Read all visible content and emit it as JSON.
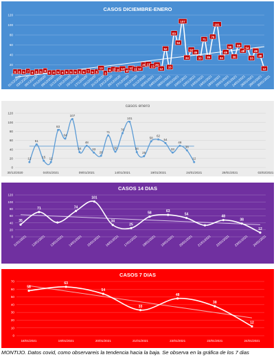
{
  "caption": "MONTIJO. Datos covid, como observareis la tendencia hacia la baja. Se observa en la gráfica de los 7 dias",
  "chart_data": [
    {
      "type": "line",
      "title": "CASOS DICIEMBRE-ENERO",
      "style": {
        "background": "#4a8fd4",
        "line": "#ffffff",
        "label_bg": "#c00000",
        "title_color": "#ffffff",
        "trend": "linear",
        "trend_color": "#ffffff"
      },
      "ylim": [
        0,
        120
      ],
      "y_ticks": [
        0,
        20,
        40,
        60,
        80,
        100,
        120
      ],
      "x_tick_labels": [
        "01/12/2020",
        "03/12/2020",
        "05/12/2020",
        "07/12/2020",
        "09/12/2020",
        "11/12/2020",
        "13/12/2020",
        "15/12/2020",
        "17/12/2020",
        "19/12/2020",
        "21/12/2020",
        "23/12/2020",
        "25/12/2020",
        "27/12/2020",
        "29/12/2020",
        "31/12/2020",
        "02/01/2021",
        "04/01/2021",
        "06/01/2021",
        "08/01/2021",
        "10/01/2021",
        "12/01/2021",
        "14/01/2021",
        "16/01/2021",
        "18/01/2021",
        "20/01/2021",
        "22/01/2021",
        "24/01/2021",
        "26/01/2021",
        "28/01/2021",
        "30/01/2021"
      ],
      "values": [
        6,
        6,
        5,
        7,
        4,
        6,
        6,
        8,
        4,
        4,
        5,
        4,
        5,
        5,
        5,
        6,
        5,
        7,
        5,
        6,
        13,
        3,
        9,
        11,
        10,
        12,
        8,
        13,
        11,
        12,
        20,
        21,
        17,
        20,
        12,
        52,
        15,
        83,
        64,
        107,
        34,
        50,
        45,
        33,
        71,
        35,
        76,
        101,
        34,
        45,
        56,
        36,
        59,
        48,
        54,
        33,
        48,
        38,
        12
      ],
      "grid": true
    },
    {
      "type": "line",
      "title": "casos enero",
      "style": {
        "background": "#ececec",
        "line": "#5b9bd5",
        "title_color": "#595959",
        "trend": "moving-average",
        "trend_color": "#5b9bd5"
      },
      "ylim": [
        0,
        120
      ],
      "y_ticks": [
        0,
        20,
        40,
        60,
        80,
        100,
        120
      ],
      "x_tick_labels": [
        "30/12/2020",
        "04/01/2021",
        "09/01/2021",
        "14/01/2021",
        "19/01/2021",
        "24/01/2021",
        "29/01/2021",
        "03/02/2021"
      ],
      "x_dates": [
        "2021-01-01",
        "2021-01-02",
        "2021-01-03",
        "2021-01-04",
        "2021-01-05",
        "2021-01-06",
        "2021-01-07",
        "2021-01-08",
        "2021-01-09",
        "2021-01-10",
        "2021-01-11",
        "2021-01-12",
        "2021-01-13",
        "2021-01-14",
        "2021-01-15",
        "2021-01-16",
        "2021-01-17",
        "2021-01-18",
        "2021-01-19",
        "2021-01-20",
        "2021-01-21",
        "2021-01-22",
        "2021-01-23",
        "2021-01-24"
      ],
      "values": [
        12,
        51,
        15,
        12,
        83,
        64,
        107,
        34,
        48,
        33,
        26,
        71,
        35,
        76,
        101,
        34,
        25,
        58,
        62,
        54,
        33,
        48,
        38,
        12
      ],
      "x_range": [
        "2020-12-30",
        "2021-02-03"
      ],
      "grid": true
    },
    {
      "type": "line",
      "title": "CASOS 14 DIAS",
      "style": {
        "background": "#7030a0",
        "line": "#ffffff",
        "title_color": "#ffffff",
        "trend": "linear",
        "trend_color": "#d9c6ea"
      },
      "ylim": [
        0,
        120
      ],
      "y_ticks": [
        0,
        20,
        40,
        60,
        80,
        100,
        120
      ],
      "categories": [
        "11/01/2021",
        "12/01/2021",
        "13/01/2021",
        "14/01/2021",
        "15/01/2021",
        "16/01/2021",
        "17/01/2021",
        "18/01/2021",
        "19/01/2021",
        "20/01/2021",
        "21/01/2021",
        "22/01/2021",
        "23/01/2021",
        "24/01/2021"
      ],
      "x_tick_labels": [
        "11/01/2021",
        "12/01/2021",
        "13/01/2021",
        "14/01/2021",
        "15/01/2021",
        "16/01/2021",
        "17/01/2021",
        "18/01/2021",
        "19/01/2021",
        "20/01/2021",
        "21/01/2021",
        "22/01/2021",
        "23/01/2021",
        "24/01/2021"
      ],
      "values": [
        35,
        71,
        41,
        74,
        101,
        34,
        25,
        58,
        63,
        54,
        33,
        48,
        38,
        12
      ],
      "data_labels": [
        "35",
        "71",
        "",
        "74",
        "101",
        "34",
        "25",
        "58",
        "63",
        "54",
        "",
        "48",
        "38",
        "12"
      ],
      "grid": true
    },
    {
      "type": "line",
      "title": "CASOS 7 DIAS",
      "style": {
        "background": "#ff0000",
        "line": "#ffffff",
        "title_color": "#ffffff",
        "trend": "linear",
        "trend_color": "#f2b3b3"
      },
      "ylim": [
        0,
        70
      ],
      "y_ticks": [
        0,
        10,
        20,
        30,
        40,
        50,
        60,
        70
      ],
      "categories": [
        "18/01/2021",
        "19/01/2021",
        "20/01/2021",
        "21/01/2021",
        "22/01/2021",
        "23/01/2021",
        "24/01/2021"
      ],
      "x_tick_labels": [
        "18/01/2021",
        "19/01/2021",
        "20/01/2021",
        "21/01/2021",
        "22/01/2021",
        "23/01/2021",
        "24/01/2021"
      ],
      "values": [
        58,
        63,
        54,
        33,
        48,
        38,
        12
      ],
      "grid": true
    }
  ]
}
